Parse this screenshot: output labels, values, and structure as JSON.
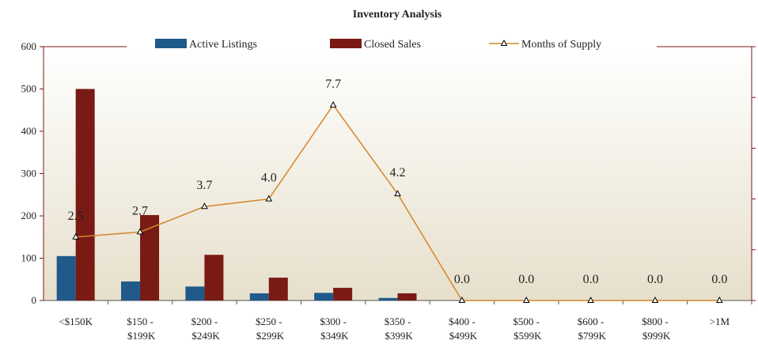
{
  "chart_data": {
    "type": "bar-line",
    "title": "Inventory Analysis",
    "categories": [
      "<$150K",
      "$150 - $199K",
      "$200 - $249K",
      "$250 - $299K",
      "$300 - $349K",
      "$350 - $399K",
      "$400 - $499K",
      "$500 - $599K",
      "$600 - $799K",
      "$800 - $999K",
      ">1M"
    ],
    "series": [
      {
        "name": "Active Listings",
        "color": "#1f5a8a",
        "type": "bar",
        "values": [
          105,
          45,
          33,
          17,
          18,
          6,
          0,
          0,
          0,
          0,
          0
        ]
      },
      {
        "name": "Closed Sales",
        "color": "#7a1a15",
        "type": "bar",
        "values": [
          500,
          202,
          108,
          54,
          30,
          17,
          0,
          0,
          0,
          0,
          0
        ]
      },
      {
        "name": "Months of Supply",
        "color": "#d4862b",
        "type": "line",
        "axis": "y2",
        "values": [
          2.5,
          2.7,
          3.7,
          4.0,
          7.7,
          4.2,
          0.0,
          0.0,
          0.0,
          0.0,
          0.0
        ],
        "value_labels": [
          "2.5",
          "2.7",
          "3.7",
          "4.0",
          "7.7",
          "4.2",
          "0.0",
          "0.0",
          "0.0",
          "0.0",
          "0.0"
        ]
      }
    ],
    "ylim": [
      0,
      600
    ],
    "yticks": [
      0,
      100,
      200,
      300,
      400,
      500,
      600
    ],
    "y2lim": [
      0,
      10
    ],
    "y2ticks": [
      0,
      2,
      4,
      6,
      8,
      10
    ],
    "legend": "top"
  }
}
